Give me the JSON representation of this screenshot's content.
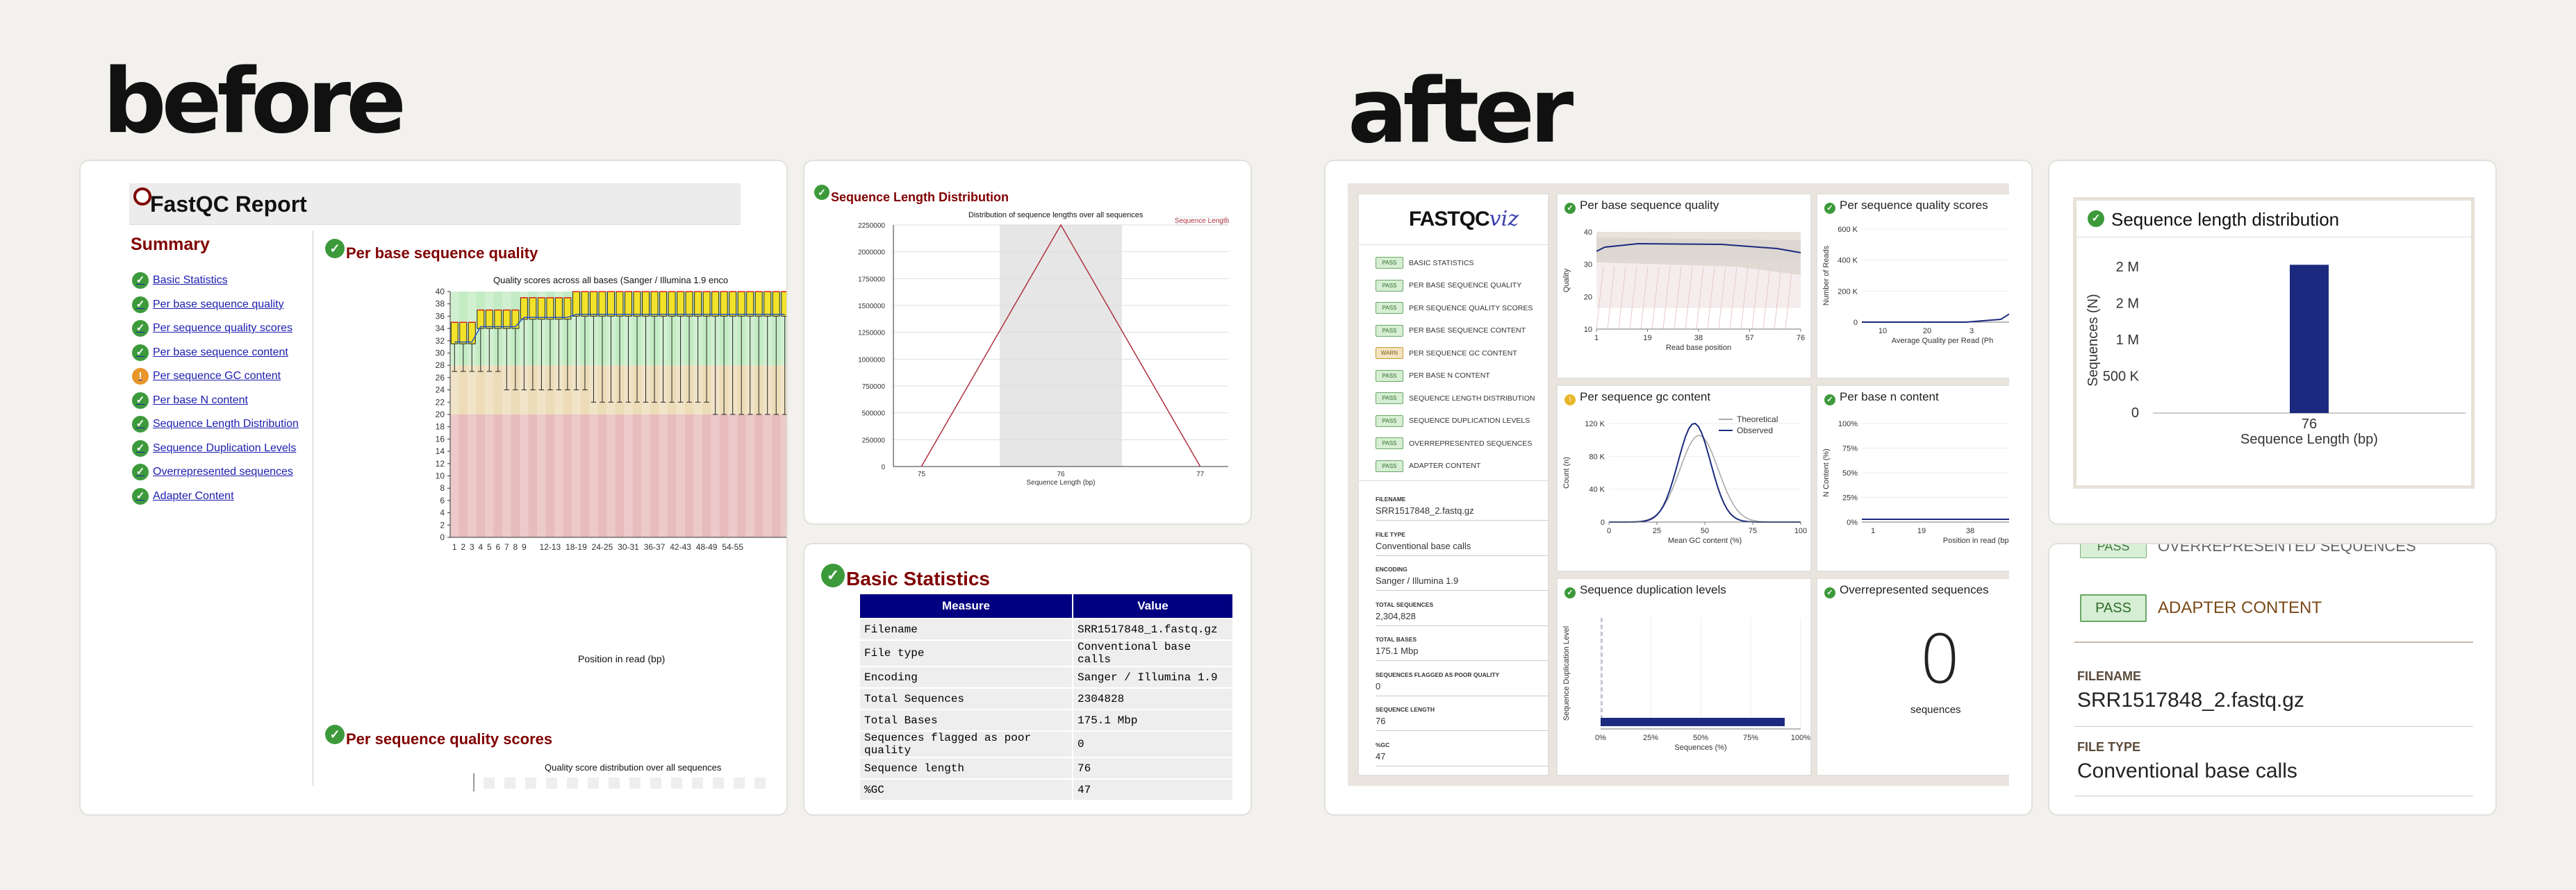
{
  "headings": {
    "before": "before",
    "after": "after"
  },
  "before": {
    "report_title": "FastQC Report",
    "summary_title": "Summary",
    "summary_items": [
      {
        "label": "Basic Statistics",
        "status": "pass"
      },
      {
        "label": "Per base sequence quality",
        "status": "pass"
      },
      {
        "label": "Per sequence quality scores",
        "status": "pass"
      },
      {
        "label": "Per base sequence content",
        "status": "pass"
      },
      {
        "label": "Per sequence GC content",
        "status": "warn"
      },
      {
        "label": "Per base N content",
        "status": "pass"
      },
      {
        "label": "Sequence Length Distribution",
        "status": "pass"
      },
      {
        "label": "Sequence Duplication Levels",
        "status": "pass"
      },
      {
        "label": "Overrepresented sequences",
        "status": "pass"
      },
      {
        "label": "Adapter Content",
        "status": "pass"
      }
    ],
    "pbsq": {
      "title": "Per base sequence quality",
      "chart_title": "Quality scores across all bases (Sanger / Illumina 1.9 enco",
      "xlabel": "Position in read (bp)"
    },
    "psqs": {
      "title": "Per sequence quality scores",
      "chart_title": "Quality score distribution over all sequences"
    },
    "sld": {
      "title": "Sequence Length Distribution",
      "chart_title": "Distribution of sequence lengths over all sequences",
      "legend": "Sequence Length",
      "xlabel": "Sequence Length (bp)"
    },
    "basic_stats": {
      "title": "Basic Statistics",
      "columns": [
        "Measure",
        "Value"
      ],
      "rows": [
        [
          "Filename",
          "SRR1517848_1.fastq.gz"
        ],
        [
          "File type",
          "Conventional base calls"
        ],
        [
          "Encoding",
          "Sanger / Illumina 1.9"
        ],
        [
          "Total Sequences",
          "2304828"
        ],
        [
          "Total Bases",
          "175.1 Mbp"
        ],
        [
          "Sequences flagged as poor quality",
          "0"
        ],
        [
          "Sequence length",
          "76"
        ],
        [
          "%GC",
          "47"
        ]
      ]
    }
  },
  "after": {
    "logo": {
      "main": "FASTQC",
      "accent": "viz"
    },
    "modules": [
      {
        "badge": "PASS",
        "label": "BASIC STATISTICS",
        "status": "pass"
      },
      {
        "badge": "PASS",
        "label": "PER BASE SEQUENCE QUALITY",
        "status": "pass"
      },
      {
        "badge": "PASS",
        "label": "PER SEQUENCE QUALITY SCORES",
        "status": "pass"
      },
      {
        "badge": "PASS",
        "label": "PER BASE SEQUENCE CONTENT",
        "status": "pass"
      },
      {
        "badge": "WARN",
        "label": "PER SEQUENCE GC CONTENT",
        "status": "warn"
      },
      {
        "badge": "PASS",
        "label": "PER BASE N CONTENT",
        "status": "pass"
      },
      {
        "badge": "PASS",
        "label": "SEQUENCE LENGTH DISTRIBUTION",
        "status": "pass"
      },
      {
        "badge": "PASS",
        "label": "SEQUENCE DUPLICATION LEVELS",
        "status": "pass"
      },
      {
        "badge": "PASS",
        "label": "OVERREPRESENTED SEQUENCES",
        "status": "pass"
      },
      {
        "badge": "PASS",
        "label": "ADAPTER CONTENT",
        "status": "pass"
      }
    ],
    "meta": [
      {
        "key": "FILENAME",
        "value": "SRR1517848_2.fastq.gz"
      },
      {
        "key": "FILE TYPE",
        "value": "Conventional base calls"
      },
      {
        "key": "ENCODING",
        "value": "Sanger / Illumina 1.9"
      },
      {
        "key": "TOTAL SEQUENCES",
        "value": "2,304,828"
      },
      {
        "key": "TOTAL BASES",
        "value": "175.1 Mbp"
      },
      {
        "key": "SEQUENCES FLAGGED AS POOR QUALITY",
        "value": "0"
      },
      {
        "key": "SEQUENCE LENGTH",
        "value": "76"
      },
      {
        "key": "%GC",
        "value": "47"
      }
    ],
    "panels": {
      "pbsq": {
        "title": "Per base sequence quality",
        "ylabel": "Quality",
        "xlabel": "Read base position",
        "yticks": [
          "40",
          "30",
          "20",
          "10"
        ],
        "xticks": [
          "1",
          "19",
          "38",
          "57",
          "76"
        ]
      },
      "psqs": {
        "title": "Per sequence quality scores",
        "ylabel": "Number of Reads",
        "xlabel": "Average Quality per Read (Ph",
        "yticks": [
          "600 K",
          "400 K",
          "200 K",
          "0"
        ],
        "xticks": [
          "10",
          "20",
          "3"
        ]
      },
      "gc": {
        "title": "Per sequence gc content",
        "ylabel": "Count (n)",
        "xlabel": "Mean GC content (%)",
        "yticks": [
          "120 K",
          "80 K",
          "40 K",
          "0"
        ],
        "xticks": [
          "0",
          "25",
          "50",
          "75",
          "100"
        ],
        "legend": [
          "Theoretical",
          "Observed"
        ]
      },
      "n": {
        "title": "Per base n content",
        "ylabel": "N Content (%)",
        "xlabel": "Position in read (bp)",
        "yticks": [
          "100%",
          "75%",
          "50%",
          "25%",
          "0%"
        ],
        "xticks": [
          "1",
          "19",
          "38"
        ]
      },
      "dup": {
        "title": "Sequence duplication levels",
        "ylabel": "Sequence Duplication Level",
        "xlabel": "Sequences (%)",
        "xticks": [
          "0%",
          "25%",
          "50%",
          "75%",
          "100%"
        ]
      },
      "over": {
        "title": "Overrepresented sequences",
        "value": "0",
        "unit": "sequences"
      }
    },
    "sld_zoom": {
      "title": "Sequence length distribution",
      "ylabel": "Sequences (N)",
      "xlabel": "Sequence Length (bp)",
      "yticks": [
        "2 M",
        "2 M",
        "1 M",
        "500 K",
        "0"
      ],
      "xtick": "76"
    },
    "adapter_zoom": {
      "partial_label": "OVERREPRESENTED SEQUENCES",
      "badge": "PASS",
      "label": "ADAPTER CONTENT",
      "meta": [
        {
          "key": "FILENAME",
          "value": "SRR1517848_2.fastq.gz"
        },
        {
          "key": "FILE TYPE",
          "value": "Conventional base calls"
        }
      ]
    }
  },
  "colors": {
    "maroon": "#800000",
    "navy": "#000080",
    "pass": "#3d9a3b",
    "warn": "#e8b62a",
    "viz_navy": "#1b2a7e"
  },
  "chart_data": [
    {
      "type": "line",
      "title": "Distribution of sequence lengths over all sequences",
      "categories": [
        "75",
        "76",
        "77"
      ],
      "series": [
        {
          "name": "Sequence Length",
          "values": [
            0,
            2304828,
            0
          ]
        }
      ],
      "ylim": [
        0,
        2250000
      ],
      "xlabel": "Sequence Length (bp)",
      "yticks": [
        "0",
        "250000",
        "500000",
        "750000",
        "1000000",
        "1250000",
        "1500000",
        "1750000",
        "2000000",
        "2250000"
      ]
    },
    {
      "type": "bar",
      "title": "Sequence length distribution",
      "categories": [
        "76"
      ],
      "values": [
        2304828
      ],
      "xlabel": "Sequence Length (bp)",
      "ylabel": "Sequences (N)"
    }
  ]
}
